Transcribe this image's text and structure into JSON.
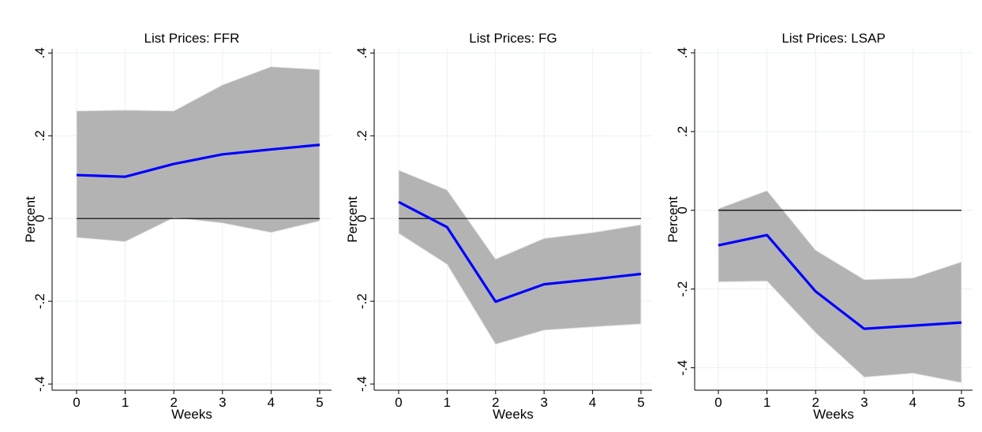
{
  "chart_data": [
    {
      "type": "line",
      "title": "List Prices: FFR",
      "x_label": "Weeks",
      "y_label": "Percent",
      "x": [
        0,
        1,
        2,
        3,
        4,
        5
      ],
      "xlim": [
        0,
        5
      ],
      "xticks": [
        0,
        1,
        2,
        3,
        4,
        5
      ],
      "ylim": [
        -0.415,
        0.41
      ],
      "yticks": [
        {
          "value": -0.4,
          "label": "-.4"
        },
        {
          "value": -0.2,
          "label": "-.2"
        },
        0,
        {
          "value": 0.2,
          "label": ".2"
        },
        {
          "value": 0.4,
          "label": ".4"
        }
      ],
      "grid": true,
      "reference_line": 0,
      "series": [
        {
          "color": "#0000ff",
          "values": [
            0.105,
            0.101,
            0.132,
            0.155,
            0.167,
            0.178
          ]
        }
      ],
      "band": {
        "color": "#b3b3b3",
        "upper": [
          0.26,
          0.262,
          0.26,
          0.323,
          0.367,
          0.36
        ],
        "lower": [
          -0.046,
          -0.056,
          0.002,
          -0.011,
          -0.034,
          -0.006
        ]
      }
    },
    {
      "type": "line",
      "title": "List Prices: FG",
      "x_label": "Weeks",
      "y_label": "Percent",
      "x": [
        0,
        1,
        2,
        3,
        4,
        5
      ],
      "xlim": [
        0,
        5
      ],
      "xticks": [
        0,
        1,
        2,
        3,
        4,
        5
      ],
      "ylim": [
        -0.415,
        0.41
      ],
      "yticks": [
        {
          "value": -0.4,
          "label": "-.4"
        },
        {
          "value": -0.2,
          "label": "-.2"
        },
        0,
        {
          "value": 0.2,
          "label": ".2"
        },
        {
          "value": 0.4,
          "label": ".4"
        }
      ],
      "grid": true,
      "reference_line": 0,
      "series": [
        {
          "color": "#0000ff",
          "values": [
            0.04,
            -0.021,
            -0.201,
            -0.159,
            -0.147,
            -0.134
          ]
        }
      ],
      "band": {
        "color": "#b3b3b3",
        "upper": [
          0.117,
          0.069,
          -0.098,
          -0.048,
          -0.034,
          -0.015
        ],
        "lower": [
          -0.036,
          -0.111,
          -0.304,
          -0.27,
          -0.262,
          -0.255
        ]
      }
    },
    {
      "type": "line",
      "title": "List Prices: LSAP",
      "x_label": "Weeks",
      "y_label": "Percent",
      "x": [
        0,
        1,
        2,
        3,
        4,
        5
      ],
      "xlim": [
        0,
        5
      ],
      "xticks": [
        0,
        1,
        2,
        3,
        4,
        5
      ],
      "ylim": [
        -0.457,
        0.41
      ],
      "yticks": [
        {
          "value": -0.4,
          "label": "-.4"
        },
        {
          "value": -0.2,
          "label": "-.2"
        },
        0,
        {
          "value": 0.2,
          "label": ".2"
        },
        {
          "value": 0.4,
          "label": ".4"
        }
      ],
      "grid": true,
      "reference_line": 0,
      "series": [
        {
          "color": "#0000ff",
          "values": [
            -0.089,
            -0.063,
            -0.206,
            -0.301,
            -0.293,
            -0.285
          ]
        }
      ],
      "band": {
        "color": "#b3b3b3",
        "upper": [
          0.004,
          0.05,
          -0.101,
          -0.176,
          -0.172,
          -0.131
        ],
        "lower": [
          -0.182,
          -0.18,
          -0.311,
          -0.424,
          -0.414,
          -0.438
        ]
      }
    }
  ]
}
